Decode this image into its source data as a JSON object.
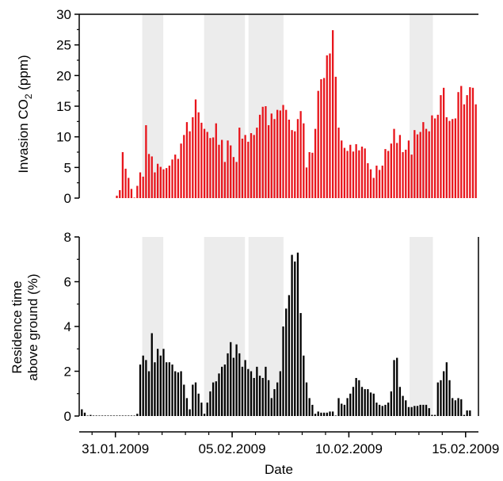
{
  "chart_data": [
    {
      "type": "bar",
      "name": "invasion-co2",
      "ylabel_main": "Invasion CO",
      "ylabel_sub": "2",
      "ylabel_unit": " (ppm)",
      "ylim": [
        0,
        30
      ],
      "yticks": [
        0,
        5,
        10,
        15,
        20,
        25,
        30
      ],
      "bar_color": "#e8141b",
      "shaded_color": "#ececec",
      "x_start": "2009-01-31T00:00",
      "bar_hours": 3,
      "xlim_days": [
        -0.55,
        16.55
      ],
      "shaded_days": [
        [
          2.15,
          3.05
        ],
        [
          4.8,
          6.55
        ],
        [
          6.7,
          8.2
        ],
        [
          13.6,
          14.6
        ]
      ],
      "values": [
        0.4,
        1.3,
        7.5,
        4.8,
        3.3,
        1.5,
        0,
        2.0,
        4.2,
        3.5,
        11.9,
        7.2,
        6.8,
        4.2,
        5.6,
        5.1,
        4.7,
        4.9,
        5.3,
        6.3,
        7.1,
        6.4,
        8.9,
        10.3,
        12.4,
        10.9,
        13.2,
        16.1,
        14.0,
        12.3,
        11.3,
        10.8,
        9.8,
        9.9,
        12.2,
        8.7,
        9.5,
        5.9,
        9.4,
        8.6,
        6.7,
        5.9,
        11.5,
        9.7,
        10.3,
        9.2,
        10.6,
        10.3,
        11.5,
        13.6,
        14.9,
        15.0,
        11.9,
        13.8,
        12.9,
        14.4,
        14.3,
        15.2,
        14.4,
        12.8,
        11.1,
        10.9,
        12.9,
        14.2,
        12.2,
        5.0,
        7.5,
        7.4,
        11.3,
        17.5,
        19.4,
        19.6,
        23.3,
        23.6,
        27.4,
        19.8,
        11.5,
        9.4,
        8.2,
        7.7,
        8.7,
        7.6,
        8.8,
        7.8,
        8.4,
        8.1,
        5.7,
        4.7,
        3.3,
        5.3,
        4.6,
        5.3,
        8.0,
        7.7,
        8.9,
        11.3,
        9.0,
        10.3,
        7.5,
        7.9,
        9.4,
        7.1,
        11.1,
        10.4,
        10.8,
        12.4,
        11.3,
        10.9,
        13.5,
        13.0,
        13.6,
        16.8,
        18.0,
        13.2,
        12.6,
        12.9,
        13.0,
        17.3,
        18.3,
        15.3,
        16.8,
        18.1,
        18.0,
        15.3,
        12.1,
        9.9,
        9.6,
        8.7,
        5.8,
        6.6,
        3.4,
        6.2
      ]
    },
    {
      "type": "bar",
      "name": "residence-time",
      "ylabel_line1": "Residence time",
      "ylabel_line2": "above ground (%)",
      "ylim": [
        0,
        8
      ],
      "yticks": [
        0,
        2,
        4,
        6,
        8
      ],
      "bar_color": "#000000",
      "xlabel": "Date",
      "xtick_labels": [
        {
          "label": "31.01.2009",
          "day": 1
        },
        {
          "label": "05.02.2009",
          "day": 6
        },
        {
          "label": "10.02.2009",
          "day": 11
        },
        {
          "label": "15.02.2009",
          "day": 16
        }
      ],
      "x_start": "2009-01-29T00:00",
      "bar_hours": 3,
      "values": [
        0.1,
        0.6,
        0.7,
        0.5,
        0.3,
        0.15,
        0,
        0.05,
        0.02,
        0,
        0,
        0,
        0,
        0,
        0,
        0,
        0,
        0,
        0,
        0,
        0,
        0,
        0,
        0.1,
        2.3,
        2.7,
        2.5,
        2.0,
        3.7,
        2.4,
        3.0,
        2.7,
        3.0,
        2.4,
        2.4,
        2.3,
        2.0,
        1.95,
        2.0,
        1.4,
        0.8,
        0.3,
        1.4,
        1.5,
        1.0,
        0.6,
        0.1,
        0.6,
        1.1,
        1.5,
        1.55,
        1.9,
        2.2,
        2.3,
        2.8,
        3.3,
        2.6,
        3.2,
        2.8,
        2.2,
        2.5,
        2.1,
        2.0,
        1.7,
        2.2,
        1.8,
        1.7,
        2.2,
        1.6,
        0.8,
        1.2,
        1.5,
        2.0,
        4.0,
        4.8,
        5.4,
        7.2,
        6.9,
        7.3,
        4.6,
        2.7,
        1.5,
        0.8,
        0.5,
        0.1,
        0.2,
        0.15,
        0.15,
        0.15,
        0.2,
        0.2,
        0,
        0.8,
        0.55,
        0.5,
        0.8,
        1.0,
        1.3,
        1.7,
        1.6,
        1.3,
        1.2,
        1.2,
        1.05,
        1.0,
        0.6,
        0.5,
        0.45,
        0.5,
        0.6,
        1.1,
        2.5,
        2.6,
        1.3,
        0.9,
        0.7,
        0.4,
        0.4,
        0.45,
        0.45,
        0.5,
        0.5,
        0.5,
        0.35,
        0.05,
        0.05,
        1.5,
        1.6,
        2.0,
        2.4,
        1.6,
        0.8,
        0.7,
        0.8,
        0.75,
        0.05,
        0.25,
        0.25
      ]
    }
  ]
}
